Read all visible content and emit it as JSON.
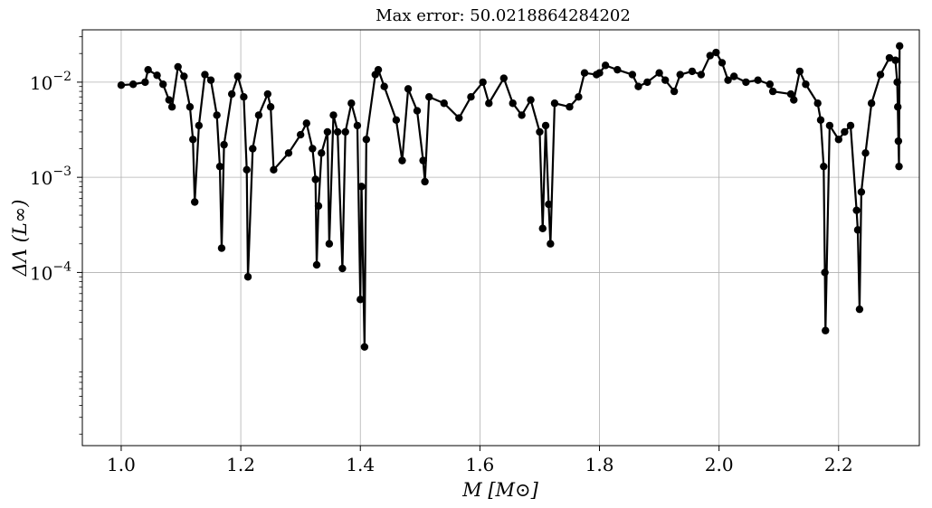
{
  "chart_data": {
    "type": "line",
    "title": "Max error: 50.0218864284202",
    "xlabel": "M [M⊙]",
    "ylabel": "ΔΛ (L∞)",
    "xlim": [
      0.935,
      2.335
    ],
    "ylim_log10": [
      -5.82,
      -1.45
    ],
    "yscale": "log",
    "grid": true,
    "x_ticks": [
      1.0,
      1.2,
      1.4,
      1.6,
      1.8,
      2.0,
      2.2
    ],
    "x_tick_labels": [
      "1.0",
      "1.2",
      "1.4",
      "1.6",
      "1.8",
      "2.0",
      "2.2"
    ],
    "y_ticks": [
      {
        "base": "10",
        "exp": "−2",
        "value": 0.01
      },
      {
        "base": "10",
        "exp": "−3",
        "value": 0.001
      },
      {
        "base": "10",
        "exp": "−4",
        "value": 0.0001
      }
    ],
    "series": [
      {
        "color": "#000000",
        "marker": "circle",
        "points": [
          [
            1.0,
            0.0093
          ],
          [
            1.02,
            0.0095
          ],
          [
            1.04,
            0.01
          ],
          [
            1.045,
            0.0135
          ],
          [
            1.06,
            0.0118
          ],
          [
            1.07,
            0.0095
          ],
          [
            1.08,
            0.0065
          ],
          [
            1.085,
            0.0055
          ],
          [
            1.095,
            0.0145
          ],
          [
            1.105,
            0.0115
          ],
          [
            1.115,
            0.0055
          ],
          [
            1.12,
            0.0025
          ],
          [
            1.123,
            0.00055
          ],
          [
            1.13,
            0.0035
          ],
          [
            1.14,
            0.012
          ],
          [
            1.15,
            0.0105
          ],
          [
            1.16,
            0.0045
          ],
          [
            1.165,
            0.0013
          ],
          [
            1.168,
            0.00018
          ],
          [
            1.172,
            0.0022
          ],
          [
            1.185,
            0.0075
          ],
          [
            1.195,
            0.0115
          ],
          [
            1.205,
            0.007
          ],
          [
            1.21,
            0.0012
          ],
          [
            1.212,
            9e-05
          ],
          [
            1.22,
            0.002
          ],
          [
            1.23,
            0.0045
          ],
          [
            1.245,
            0.0075
          ],
          [
            1.25,
            0.0055
          ],
          [
            1.255,
            0.0012
          ],
          [
            1.28,
            0.0018
          ],
          [
            1.3,
            0.0028
          ],
          [
            1.31,
            0.0037
          ],
          [
            1.32,
            0.002
          ],
          [
            1.325,
            0.00095
          ],
          [
            1.327,
            0.00012
          ],
          [
            1.33,
            0.0005
          ],
          [
            1.335,
            0.0018
          ],
          [
            1.345,
            0.003
          ],
          [
            1.348,
            0.0002
          ],
          [
            1.355,
            0.0045
          ],
          [
            1.362,
            0.003
          ],
          [
            1.37,
            0.00011
          ],
          [
            1.375,
            0.003
          ],
          [
            1.385,
            0.006
          ],
          [
            1.395,
            0.0035
          ],
          [
            1.4,
            5.2e-05
          ],
          [
            1.402,
            0.0008
          ],
          [
            1.407,
            1.65e-05
          ],
          [
            1.41,
            0.0025
          ],
          [
            1.425,
            0.012
          ],
          [
            1.43,
            0.0135
          ],
          [
            1.44,
            0.009
          ],
          [
            1.46,
            0.004
          ],
          [
            1.47,
            0.0015
          ],
          [
            1.48,
            0.0085
          ],
          [
            1.495,
            0.005
          ],
          [
            1.505,
            0.0015
          ],
          [
            1.508,
            0.0009
          ],
          [
            1.515,
            0.007
          ],
          [
            1.54,
            0.006
          ],
          [
            1.565,
            0.0042
          ],
          [
            1.585,
            0.007
          ],
          [
            1.605,
            0.01
          ],
          [
            1.615,
            0.006
          ],
          [
            1.64,
            0.011
          ],
          [
            1.655,
            0.006
          ],
          [
            1.67,
            0.0045
          ],
          [
            1.685,
            0.0065
          ],
          [
            1.7,
            0.003
          ],
          [
            1.705,
            0.00029
          ],
          [
            1.71,
            0.0035
          ],
          [
            1.715,
            0.00052
          ],
          [
            1.718,
            0.0002
          ],
          [
            1.725,
            0.006
          ],
          [
            1.75,
            0.0055
          ],
          [
            1.765,
            0.007
          ],
          [
            1.775,
            0.0125
          ],
          [
            1.795,
            0.012
          ],
          [
            1.8,
            0.0125
          ],
          [
            1.81,
            0.015
          ],
          [
            1.83,
            0.0135
          ],
          [
            1.855,
            0.012
          ],
          [
            1.865,
            0.009
          ],
          [
            1.88,
            0.01
          ],
          [
            1.9,
            0.0125
          ],
          [
            1.91,
            0.0105
          ],
          [
            1.925,
            0.008
          ],
          [
            1.935,
            0.012
          ],
          [
            1.955,
            0.013
          ],
          [
            1.97,
            0.012
          ],
          [
            1.985,
            0.019
          ],
          [
            1.995,
            0.0205
          ],
          [
            2.005,
            0.016
          ],
          [
            2.015,
            0.0105
          ],
          [
            2.025,
            0.0115
          ],
          [
            2.045,
            0.01
          ],
          [
            2.065,
            0.0105
          ],
          [
            2.085,
            0.0095
          ],
          [
            2.09,
            0.008
          ],
          [
            2.12,
            0.0075
          ],
          [
            2.125,
            0.0065
          ],
          [
            2.135,
            0.013
          ],
          [
            2.145,
            0.0095
          ],
          [
            2.165,
            0.006
          ],
          [
            2.17,
            0.004
          ],
          [
            2.175,
            0.0013
          ],
          [
            2.177,
            0.0001
          ],
          [
            2.178,
            2.45e-05
          ],
          [
            2.185,
            0.0035
          ],
          [
            2.2,
            0.0025
          ],
          [
            2.21,
            0.003
          ],
          [
            2.22,
            0.0035
          ],
          [
            2.23,
            0.00045
          ],
          [
            2.232,
            0.00028
          ],
          [
            2.235,
            4.1e-05
          ],
          [
            2.238,
            0.0007
          ],
          [
            2.245,
            0.0018
          ],
          [
            2.255,
            0.006
          ],
          [
            2.27,
            0.012
          ],
          [
            2.285,
            0.018
          ],
          [
            2.295,
            0.017
          ],
          [
            2.298,
            0.01
          ],
          [
            2.299,
            0.0055
          ],
          [
            2.3,
            0.0024
          ],
          [
            2.301,
            0.0013
          ],
          [
            2.302,
            0.024
          ]
        ]
      }
    ]
  }
}
